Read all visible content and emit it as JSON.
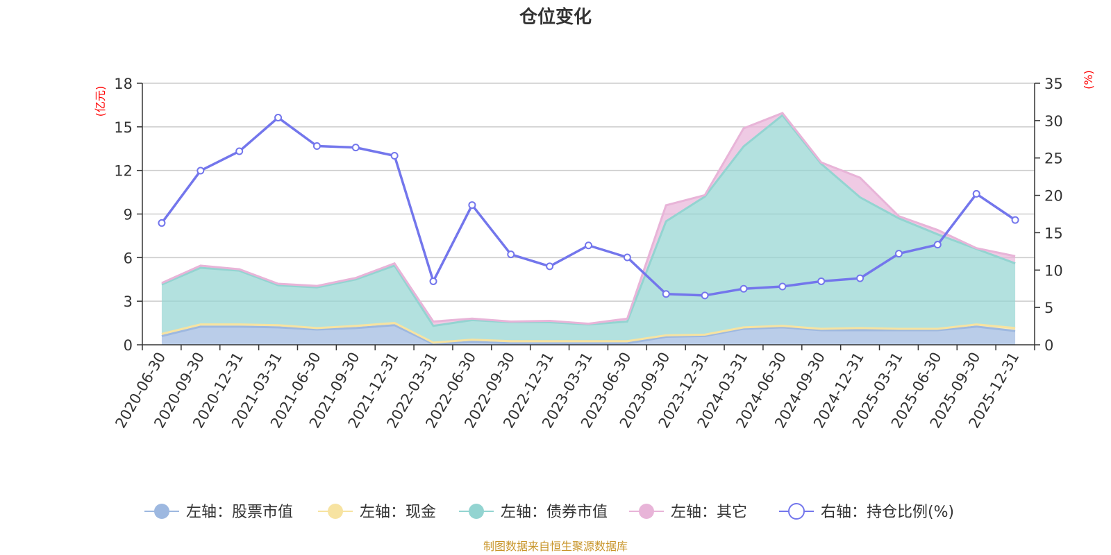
{
  "chart_data": {
    "type": "area",
    "title": "仓位变化",
    "left_axis_unit": "(亿元)",
    "right_axis_unit": "(%)",
    "categories": [
      "2020-06-30",
      "2020-09-30",
      "2020-12-31",
      "2021-03-31",
      "2021-06-30",
      "2021-09-30",
      "2021-12-31",
      "2022-03-31",
      "2022-06-30",
      "2022-09-30",
      "2022-12-31",
      "2023-03-31",
      "2023-06-30",
      "2023-09-30",
      "2023-12-31",
      "2024-03-31",
      "2024-06-30",
      "2024-09-30",
      "2024-12-31",
      "2025-03-31",
      "2025-06-30",
      "2025-09-30",
      "2025-12-31"
    ],
    "left_ylim": [
      0,
      18
    ],
    "left_ticks": [
      0,
      3,
      6,
      9,
      12,
      15,
      18
    ],
    "right_ylim": [
      0,
      35
    ],
    "right_ticks": [
      0,
      5,
      10,
      15,
      20,
      25,
      30,
      35
    ],
    "series": [
      {
        "name": "左轴：股票市值",
        "axis": "left",
        "stack": true,
        "color": "#9db8e0",
        "values": [
          0.6,
          1.25,
          1.25,
          1.2,
          1.05,
          1.15,
          1.35,
          0.05,
          0.2,
          0.1,
          0.1,
          0.1,
          0.1,
          0.55,
          0.6,
          1.1,
          1.2,
          1.0,
          1.0,
          1.0,
          1.0,
          1.25,
          0.95
        ]
      },
      {
        "name": "左轴：现金",
        "axis": "left",
        "stack": true,
        "color": "#f7e3a1",
        "values": [
          0.15,
          0.15,
          0.15,
          0.15,
          0.1,
          0.15,
          0.15,
          0.1,
          0.15,
          0.15,
          0.15,
          0.15,
          0.15,
          0.1,
          0.1,
          0.1,
          0.1,
          0.1,
          0.15,
          0.1,
          0.1,
          0.15,
          0.2
        ]
      },
      {
        "name": "左轴：债券市值",
        "axis": "left",
        "stack": true,
        "color": "#93d4d1",
        "values": [
          3.4,
          3.9,
          3.7,
          2.75,
          2.8,
          3.2,
          3.95,
          1.15,
          1.35,
          1.3,
          1.3,
          1.15,
          1.35,
          7.85,
          9.5,
          12.45,
          14.5,
          11.35,
          9.0,
          7.6,
          6.5,
          5.2,
          4.45
        ]
      },
      {
        "name": "左轴：其它",
        "axis": "left",
        "stack": true,
        "color": "#e8b4d8",
        "values": [
          0.1,
          0.15,
          0.1,
          0.1,
          0.1,
          0.1,
          0.15,
          0.3,
          0.1,
          0.05,
          0.1,
          0.05,
          0.2,
          1.1,
          0.1,
          1.25,
          0.15,
          0.1,
          1.35,
          0.15,
          0.3,
          0.05,
          0.5
        ]
      },
      {
        "name": "右轴：持仓比例(%)",
        "axis": "right",
        "stack": false,
        "color": "#7376ec",
        "values": [
          16.3,
          23.3,
          25.9,
          30.4,
          26.6,
          26.4,
          25.3,
          8.5,
          18.7,
          12.1,
          10.5,
          13.3,
          11.7,
          6.8,
          6.6,
          7.5,
          7.8,
          8.5,
          8.9,
          12.2,
          13.4,
          20.2,
          16.7
        ]
      }
    ]
  },
  "footer": {
    "source": "制图数据来自恒生聚源数据库"
  }
}
